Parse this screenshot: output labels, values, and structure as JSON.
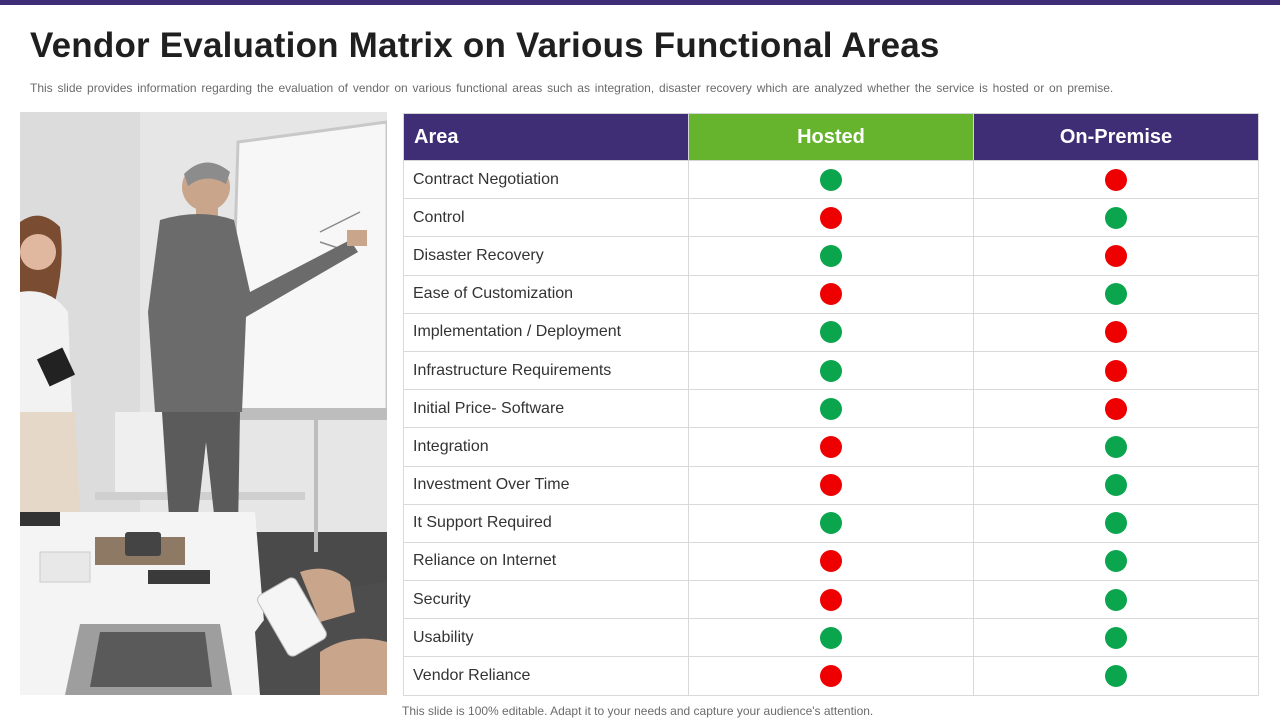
{
  "slide": {
    "title": "Vendor Evaluation Matrix on Various Functional Areas",
    "subtitle": "This slide provides information regarding the evaluation of vendor on various functional areas such as integration, disaster recovery which are analyzed whether the service is hosted or on premise.",
    "footer": "This slide is 100% editable. Adapt it to your needs and capture your audience's attention."
  },
  "colors": {
    "brand_purple": "#3f2d76",
    "hosted_green": "#66b32e",
    "status_yes": "#0aa54d",
    "status_no": "#ee0000"
  },
  "table": {
    "headers": {
      "area": "Area",
      "hosted": "Hosted",
      "on_premise": "On-Premise"
    },
    "rows": [
      {
        "area": "Contract Negotiation",
        "hosted": "green",
        "on_premise": "red"
      },
      {
        "area": "Control",
        "hosted": "red",
        "on_premise": "green"
      },
      {
        "area": "Disaster Recovery",
        "hosted": "green",
        "on_premise": "red"
      },
      {
        "area": "Ease of Customization",
        "hosted": "red",
        "on_premise": "green"
      },
      {
        "area": "Implementation  / Deployment",
        "hosted": "green",
        "on_premise": "red"
      },
      {
        "area": "Infrastructure  Requirements",
        "hosted": "green",
        "on_premise": "red"
      },
      {
        "area": "Initial Price- Software",
        "hosted": "green",
        "on_premise": "red"
      },
      {
        "area": "Integration",
        "hosted": "red",
        "on_premise": "green"
      },
      {
        "area": "Investment  Over Time",
        "hosted": "red",
        "on_premise": "green"
      },
      {
        "area": "It Support  Required",
        "hosted": "green",
        "on_premise": "green"
      },
      {
        "area": "Reliance on Internet",
        "hosted": "red",
        "on_premise": "green"
      },
      {
        "area": "Security",
        "hosted": "red",
        "on_premise": "green"
      },
      {
        "area": "Usability",
        "hosted": "green",
        "on_premise": "green"
      },
      {
        "area": "Vendor Reliance",
        "hosted": "red",
        "on_premise": "green"
      }
    ]
  }
}
